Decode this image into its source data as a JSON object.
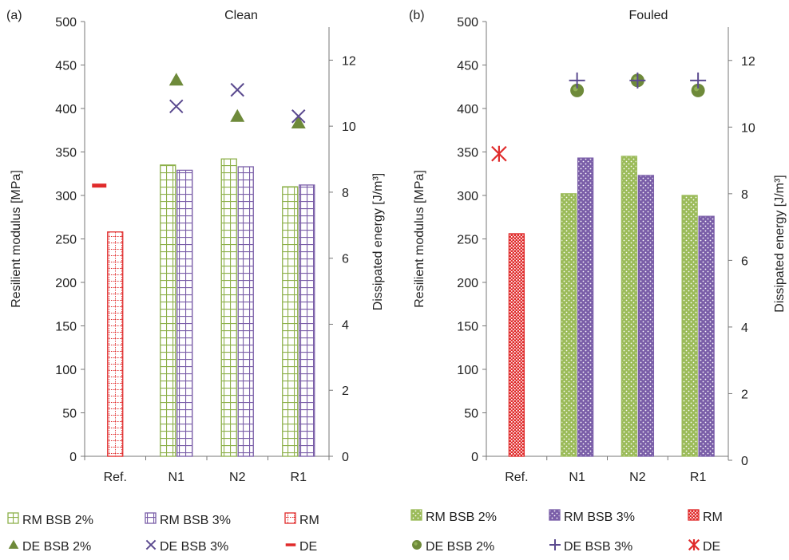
{
  "chart_data": [
    {
      "type": "bar",
      "panel_label": "(a)",
      "title": "Clean",
      "categories": [
        "Ref.",
        "N1",
        "N2",
        "R1"
      ],
      "ylabel": "Resilient modulus [MPa]",
      "y2label": "Dissipated energy [J/m³]",
      "ylim": [
        0,
        500
      ],
      "yticks": [
        "0",
        "50",
        "100",
        "150",
        "200",
        "250",
        "300",
        "350",
        "400",
        "450",
        "500"
      ],
      "y2lim": [
        0,
        13
      ],
      "y2ticks": [
        "0",
        "2",
        "4",
        "6",
        "8",
        "10",
        "12"
      ],
      "grid": false,
      "bar_series": [
        {
          "name": "RM BSB 2%",
          "color": "#8db04a",
          "pattern": "grid",
          "values": [
            null,
            335,
            342,
            310
          ]
        },
        {
          "name": "RM BSB 3%",
          "color": "#7a5ea8",
          "pattern": "grid",
          "values": [
            null,
            329,
            333,
            312
          ]
        },
        {
          "name": "RM",
          "color": "#e02b2b",
          "pattern": "dots",
          "values": [
            258,
            null,
            null,
            null
          ]
        }
      ],
      "marker_series": [
        {
          "name": "DE BSB 2%",
          "color": "#6e8a3a",
          "marker": "triangle",
          "values": [
            null,
            11.4,
            10.3,
            10.1
          ]
        },
        {
          "name": "DE BSB 3%",
          "color": "#5b4a8f",
          "marker": "x",
          "values": [
            null,
            10.6,
            11.1,
            10.3
          ]
        },
        {
          "name": "DE",
          "color": "#e02b2b",
          "marker": "dash",
          "values": [
            8.2,
            null,
            null,
            null
          ]
        }
      ]
    },
    {
      "type": "bar",
      "panel_label": "(b)",
      "title": "Fouled",
      "categories": [
        "Ref.",
        "N1",
        "N2",
        "R1"
      ],
      "ylabel": "Resilient modulus [MPa]",
      "y2label": "Dissipated energy [J/m³]",
      "ylim": [
        0,
        500
      ],
      "yticks": [
        "0",
        "50",
        "100",
        "150",
        "200",
        "250",
        "300",
        "350",
        "400",
        "450",
        "500"
      ],
      "y2lim": [
        0,
        13
      ],
      "y2ticks": [
        "0",
        "2",
        "4",
        "6",
        "8",
        "10",
        "12"
      ],
      "grid": false,
      "bar_series": [
        {
          "name": "RM BSB 2%",
          "color": "#9bbb59",
          "pattern": "speckle",
          "values": [
            null,
            302,
            345,
            300
          ]
        },
        {
          "name": "RM BSB 3%",
          "color": "#7a5ea8",
          "pattern": "speckle",
          "values": [
            null,
            343,
            323,
            276
          ]
        },
        {
          "name": "RM",
          "color": "#e02b2b",
          "pattern": "check",
          "values": [
            256,
            null,
            null,
            null
          ]
        }
      ],
      "marker_series": [
        {
          "name": "DE BSB 2%",
          "color": "#6e8a3a",
          "marker": "circle",
          "values": [
            null,
            11.1,
            11.4,
            11.1
          ]
        },
        {
          "name": "DE BSB 3%",
          "color": "#5b4a8f",
          "marker": "plus",
          "values": [
            null,
            11.4,
            11.4,
            11.4
          ]
        },
        {
          "name": "DE",
          "color": "#e02b2b",
          "marker": "star",
          "values": [
            9.2,
            null,
            null,
            null
          ]
        }
      ]
    }
  ],
  "legends": [
    {
      "rows": [
        [
          "RM BSB 2%",
          "RM BSB 3%",
          "RM"
        ],
        [
          "DE BSB 2%",
          "DE BSB 3%",
          "DE"
        ]
      ]
    },
    {
      "rows": [
        [
          "RM BSB 2%",
          "RM BSB 3%",
          "RM"
        ],
        [
          "DE BSB 2%",
          "DE BSB 3%",
          "DE"
        ]
      ]
    }
  ]
}
